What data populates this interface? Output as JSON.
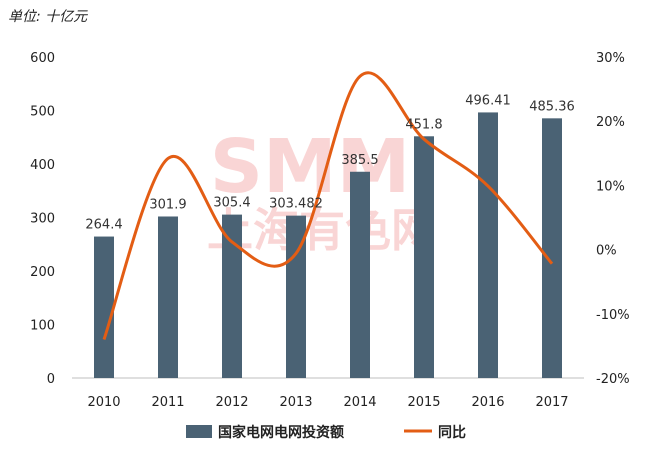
{
  "unit_label": "单位: 十亿元",
  "watermark": {
    "line1": "SMM",
    "line2": "上海有色网"
  },
  "chart_data": {
    "type": "bar",
    "categories": [
      "2010",
      "2011",
      "2012",
      "2013",
      "2014",
      "2015",
      "2016",
      "2017"
    ],
    "series": [
      {
        "name": "国家电网电网投资额",
        "type": "bar",
        "axis": "left",
        "color": "#4a6274",
        "values": [
          264.4,
          301.9,
          305.4,
          303.482,
          385.5,
          451.8,
          496.41,
          485.36
        ],
        "labels": [
          "264.4",
          "301.9",
          "305.4",
          "303.482",
          "385.5",
          "451.8",
          "496.41",
          "485.36"
        ]
      },
      {
        "name": "同比",
        "type": "line",
        "axis": "right",
        "color": "#e35d14",
        "values": [
          -14.0,
          14.2,
          1.2,
          -0.6,
          27.0,
          17.2,
          9.9,
          -2.2
        ]
      }
    ],
    "y_left": {
      "min": 0,
      "max": 600,
      "ticks": [
        "0",
        "100",
        "200",
        "300",
        "400",
        "500",
        "600"
      ]
    },
    "y_right": {
      "min": -20,
      "max": 30,
      "ticks": [
        "-20%",
        "-10%",
        "0%",
        "10%",
        "20%",
        "30%"
      ]
    },
    "grid": false,
    "legend": "bottom-center"
  }
}
